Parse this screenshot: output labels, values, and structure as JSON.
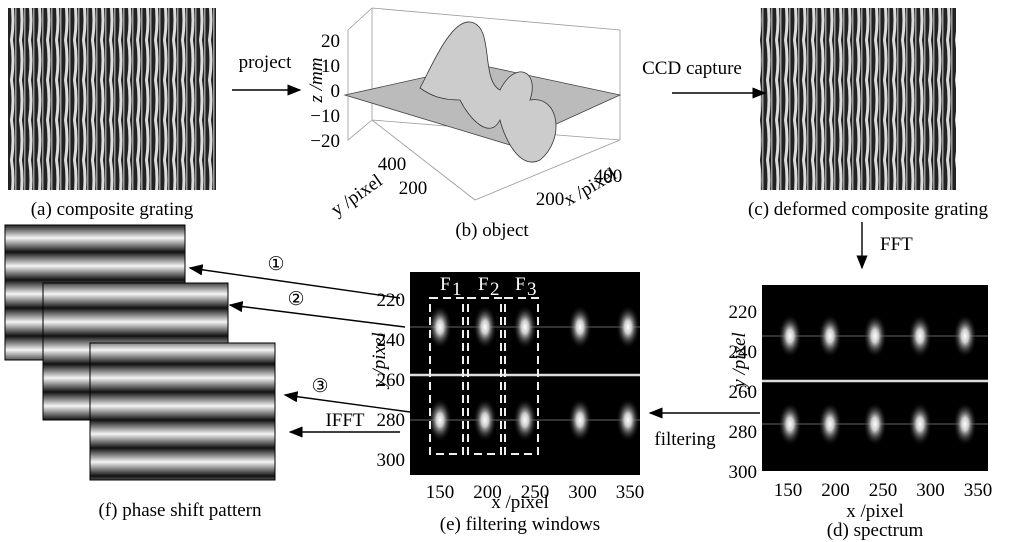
{
  "panels": {
    "a": {
      "caption": "(a) composite grating"
    },
    "b": {
      "caption": "(b) object",
      "z_label": "z /mm",
      "y_label": "y /pixel",
      "x_label": "x /pixel",
      "z_ticks": [
        "20",
        "10",
        "0",
        "−10",
        "−20"
      ],
      "y_ticks": [
        "400",
        "200"
      ],
      "x_ticks": [
        "200",
        "400"
      ]
    },
    "c": {
      "caption": "(c) deformed composite grating"
    },
    "d": {
      "caption": "(d) spectrum",
      "y_label": "y /pixel",
      "x_label": "x /pixel",
      "y_ticks": [
        "220",
        "240",
        "260",
        "280",
        "300"
      ],
      "x_ticks": [
        "150",
        "200",
        "250",
        "300",
        "350"
      ]
    },
    "e": {
      "caption": "(e) filtering windows",
      "y_label": "y /pixel",
      "x_label": "x /pixel",
      "y_ticks": [
        "220",
        "240",
        "260",
        "280",
        "300"
      ],
      "x_ticks": [
        "150",
        "200",
        "250",
        "300",
        "350"
      ],
      "windows": [
        {
          "letter": "F",
          "index": "1"
        },
        {
          "letter": "F",
          "index": "2"
        },
        {
          "letter": "F",
          "index": "3"
        }
      ]
    },
    "f": {
      "caption": "(f) phase shift pattern"
    }
  },
  "arrows": {
    "project": "project",
    "ccd": "CCD capture",
    "fft": "FFT",
    "ifft": "IFFT",
    "filtering": "filtering",
    "markers": [
      "①",
      "②",
      "③"
    ]
  }
}
